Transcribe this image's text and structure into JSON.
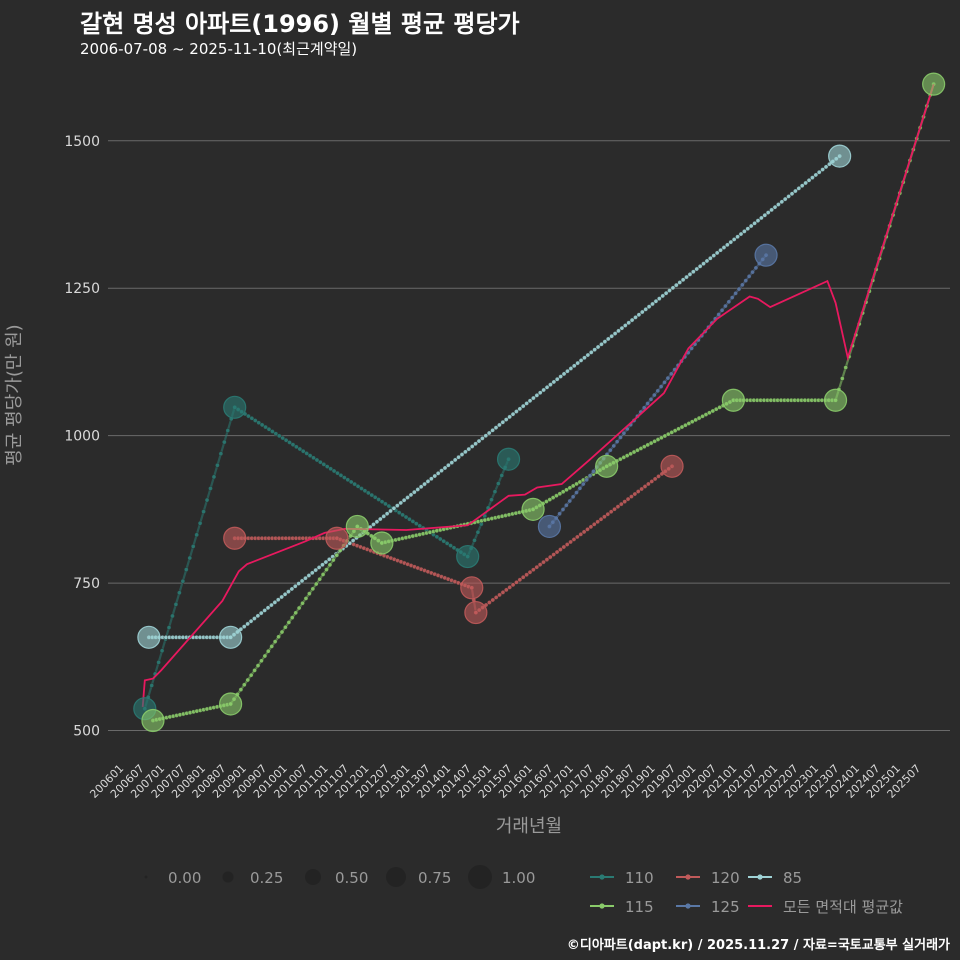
{
  "header": {
    "title": "갈현 명성 아파트(1996) 월별 평균 평당가",
    "subtitle": "2006-07-08 ~ 2025-11-10(최근계약일)"
  },
  "footer": {
    "credit": "©디아파트(dapt.kr) / 2025.11.27 / 자료=국토교통부 실거래가"
  },
  "colors": {
    "background": "#2b2b2b",
    "grid": "#6a6a6a",
    "s110": "#2a7a73",
    "s115": "#8acb6a",
    "s120": "#c05a5a",
    "s125": "#5a78a6",
    "s85": "#9fd3d6",
    "avg": "#e8195f"
  },
  "chart_data": {
    "type": "line",
    "xlabel": "거래년월",
    "ylabel": "평균 평당가(만 원)",
    "ylim": [
      450,
      1620
    ],
    "yticks": [
      500,
      750,
      1000,
      1250,
      1500
    ],
    "xlim": [
      2005.7,
      2026.3
    ],
    "xticks": [
      "200601",
      "200607",
      "200701",
      "200707",
      "200801",
      "200807",
      "200901",
      "200907",
      "201001",
      "201007",
      "201101",
      "201107",
      "201201",
      "201207",
      "201301",
      "201307",
      "201401",
      "201407",
      "201501",
      "201507",
      "201601",
      "201607",
      "201701",
      "201707",
      "201801",
      "201807",
      "201901",
      "201907",
      "202001",
      "202007",
      "202101",
      "202107",
      "202201",
      "202207",
      "202301",
      "202307",
      "202401",
      "202407",
      "202501",
      "202507"
    ],
    "series": [
      {
        "name": "110",
        "color_key": "s110",
        "points": [
          {
            "x": 2006.6,
            "y": 537
          },
          {
            "x": 2008.8,
            "y": 1048
          },
          {
            "x": 2014.5,
            "y": 795
          },
          {
            "x": 2015.5,
            "y": 960
          }
        ]
      },
      {
        "name": "120",
        "color_key": "s120",
        "points": [
          {
            "x": 2008.8,
            "y": 826
          },
          {
            "x": 2011.3,
            "y": 826
          },
          {
            "x": 2014.6,
            "y": 742
          },
          {
            "x": 2014.7,
            "y": 700
          },
          {
            "x": 2019.5,
            "y": 948
          }
        ]
      },
      {
        "name": "85",
        "color_key": "s85",
        "points": [
          {
            "x": 2006.7,
            "y": 658
          },
          {
            "x": 2008.7,
            "y": 658
          },
          {
            "x": 2023.6,
            "y": 1474
          }
        ]
      },
      {
        "name": "115",
        "color_key": "s115",
        "points": [
          {
            "x": 2006.8,
            "y": 517
          },
          {
            "x": 2008.7,
            "y": 545
          },
          {
            "x": 2011.8,
            "y": 846
          },
          {
            "x": 2012.4,
            "y": 818
          },
          {
            "x": 2016.1,
            "y": 875
          },
          {
            "x": 2017.9,
            "y": 948
          },
          {
            "x": 2021.0,
            "y": 1060
          },
          {
            "x": 2023.5,
            "y": 1060
          },
          {
            "x": 2025.9,
            "y": 1596
          }
        ]
      },
      {
        "name": "125",
        "color_key": "s125",
        "points": [
          {
            "x": 2016.5,
            "y": 846
          },
          {
            "x": 2021.8,
            "y": 1306
          }
        ]
      },
      {
        "name": "모든 면적대 평균값",
        "color_key": "avg",
        "line_only": true,
        "points": [
          {
            "x": 2006.55,
            "y": 540
          },
          {
            "x": 2006.6,
            "y": 585
          },
          {
            "x": 2006.8,
            "y": 588
          },
          {
            "x": 2007.0,
            "y": 602
          },
          {
            "x": 2008.5,
            "y": 720
          },
          {
            "x": 2008.9,
            "y": 770
          },
          {
            "x": 2009.1,
            "y": 782
          },
          {
            "x": 2010.5,
            "y": 820
          },
          {
            "x": 2011.0,
            "y": 835
          },
          {
            "x": 2011.5,
            "y": 842
          },
          {
            "x": 2013.0,
            "y": 840
          },
          {
            "x": 2014.5,
            "y": 848
          },
          {
            "x": 2015.3,
            "y": 888
          },
          {
            "x": 2015.5,
            "y": 898
          },
          {
            "x": 2015.9,
            "y": 900
          },
          {
            "x": 2016.2,
            "y": 912
          },
          {
            "x": 2016.8,
            "y": 918
          },
          {
            "x": 2017.5,
            "y": 960
          },
          {
            "x": 2019.3,
            "y": 1072
          },
          {
            "x": 2019.9,
            "y": 1148
          },
          {
            "x": 2020.6,
            "y": 1198
          },
          {
            "x": 2021.4,
            "y": 1236
          },
          {
            "x": 2021.6,
            "y": 1232
          },
          {
            "x": 2021.9,
            "y": 1218
          },
          {
            "x": 2023.3,
            "y": 1262
          },
          {
            "x": 2023.5,
            "y": 1225
          },
          {
            "x": 2023.8,
            "y": 1132
          },
          {
            "x": 2025.9,
            "y": 1596
          }
        ]
      }
    ],
    "legend": {
      "size_title": "",
      "size_entries": [
        "0.00",
        "0.25",
        "0.50",
        "0.75",
        "1.00"
      ],
      "series_entries": [
        "110",
        "120",
        "85",
        "115",
        "125",
        "모든 면적대 평균값"
      ],
      "placement": "bottom"
    }
  }
}
